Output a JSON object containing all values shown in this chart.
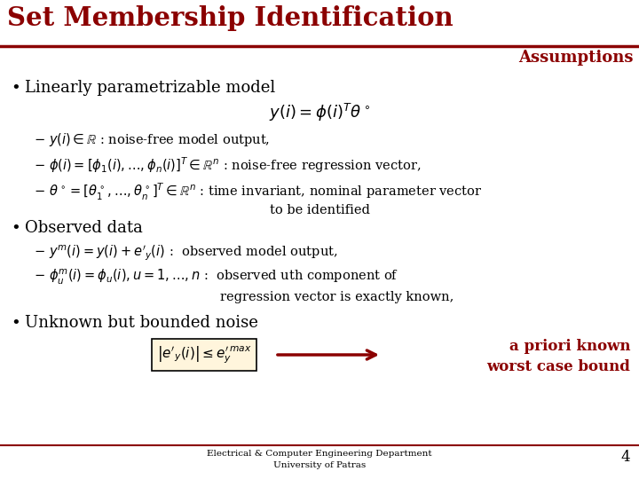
{
  "title": "Set Membership Identification",
  "subtitle": "Assumptions",
  "title_color": "#8B0000",
  "background_color": "#FFFFFF",
  "footer_text": "Electrical & Computer Engineering Department\nUniversity of Patras",
  "page_number": "4",
  "bullet1_text": "Linearly parametrizable model",
  "formula1": "$y(i) = \\phi(i)^T \\theta^\\circ$",
  "sub1a": "$-\\ y(i) \\in \\mathbb{R}$ : noise-free model output,",
  "sub1b": "$-\\ \\phi(i) = [\\phi_1(i),\\ldots,\\phi_n(i)]^T \\in \\mathbb{R}^n$ : noise-free regression vector,",
  "sub1c": "$-\\ \\theta^\\circ = [\\theta^\\circ_1,\\ldots,\\theta^\\circ_n]^T \\in \\mathbb{R}^n$ : time invariant, nominal parameter vector",
  "sub1d": "to be identified",
  "bullet2_text": "Observed data",
  "sub2a": "$-\\ y^m(i) = y(i) + e'_y(i)$ :  observed model output,",
  "sub2b": "$-\\ \\phi^m_u(i) = \\phi_u(i), u=1,\\ldots,n$ :  observed uth component of",
  "sub2c": "regression vector is exactly known,",
  "bullet3_text": "Unknown but bounded noise",
  "formula3": "$\\left|e'_y(i)\\right| \\leq e^{\\prime\\,max}_y$",
  "arrow_text": "a priori known\nworst case bound"
}
